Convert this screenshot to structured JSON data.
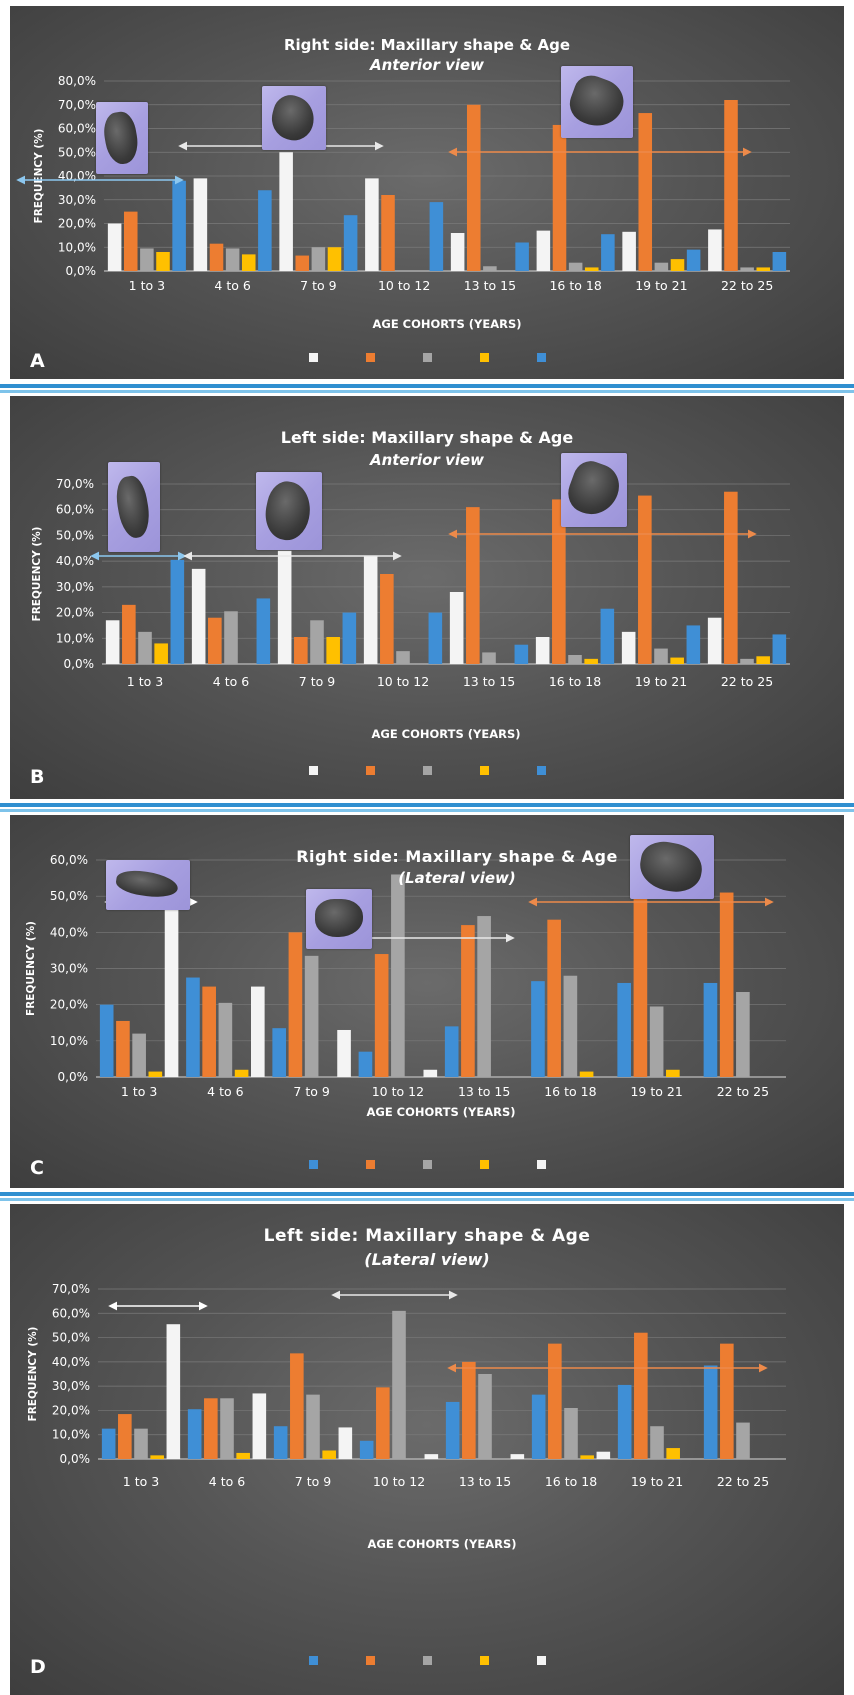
{
  "series_colors": {
    "white": "#f4f4f4",
    "orange": "#ed7d31",
    "gray": "#a5a5a5",
    "yellow": "#ffc000",
    "blue": "#3f8fd6"
  },
  "chart_data": [
    {
      "panel": "A",
      "type": "bar",
      "title": "Right side: Maxillary shape & Age",
      "subtitle": "Anterior view",
      "xlabel": "AGE COHORTS (YEARS)",
      "ylabel": "FREQUENCY (%)",
      "ylim": [
        0,
        80
      ],
      "yticks": [
        "0,0%",
        "10,0%",
        "20,0%",
        "30,0%",
        "40,0%",
        "50,0%",
        "60,0%",
        "70,0%",
        "80,0%"
      ],
      "categories": [
        "1 to 3",
        "4 to 6",
        "7 to 9",
        "10 to 12",
        "13 to 15",
        "16 to 18",
        "19 to 21",
        "22 to 25"
      ],
      "series": [
        {
          "color": "#f4f4f4",
          "values": [
            20,
            39,
            50,
            39,
            16,
            17,
            16.5,
            17.5
          ]
        },
        {
          "color": "#ed7d31",
          "values": [
            25,
            11.5,
            6.5,
            32,
            70,
            61.5,
            66.5,
            72
          ]
        },
        {
          "color": "#a5a5a5",
          "values": [
            9.5,
            9.5,
            10,
            0,
            2,
            3.5,
            3.5,
            1.5
          ]
        },
        {
          "color": "#ffc000",
          "values": [
            8,
            7,
            10,
            0,
            0,
            1.5,
            5,
            1.5
          ]
        },
        {
          "color": "#3f8fd6",
          "values": [
            38,
            34,
            23.5,
            29,
            12,
            15.5,
            9,
            8
          ]
        }
      ],
      "legend_position": "bottom",
      "grid": true
    },
    {
      "panel": "B",
      "type": "bar",
      "title": "Left side: Maxillary shape & Age",
      "subtitle": "Anterior view",
      "xlabel": "AGE COHORTS (YEARS)",
      "ylabel": "FREQUENCY (%)",
      "ylim": [
        0,
        70
      ],
      "yticks": [
        "0,0%",
        "10,0%",
        "20,0%",
        "30,0%",
        "40,0%",
        "50,0%",
        "60,0%",
        "70,0%"
      ],
      "categories": [
        "1 to 3",
        "4 to 6",
        "7 to 9",
        "10 to 12",
        "13 to 15",
        "16 to 18",
        "19 to 21",
        "22 to 25"
      ],
      "series": [
        {
          "color": "#f4f4f4",
          "values": [
            17,
            37,
            44,
            42,
            28,
            10.5,
            12.5,
            18
          ]
        },
        {
          "color": "#ed7d31",
          "values": [
            23,
            18,
            10.5,
            35,
            61,
            64,
            65.5,
            67
          ]
        },
        {
          "color": "#a5a5a5",
          "values": [
            12.5,
            20.5,
            17,
            5,
            4.5,
            3.5,
            6,
            2
          ]
        },
        {
          "color": "#ffc000",
          "values": [
            8,
            0,
            10.5,
            0,
            0,
            2,
            2.5,
            3
          ]
        },
        {
          "color": "#3f8fd6",
          "values": [
            40.5,
            25.5,
            20,
            20,
            7.5,
            21.5,
            15,
            11.5
          ]
        }
      ],
      "legend_position": "bottom",
      "grid": true
    },
    {
      "panel": "C",
      "type": "bar",
      "title": "Right side: Maxillary shape & Age",
      "subtitle": "(Lateral view)",
      "xlabel": "AGE COHORTS (YEARS)",
      "ylabel": "FREQUENCY (%)",
      "ylim": [
        0,
        60
      ],
      "yticks": [
        "0,0%",
        "10,0%",
        "20,0%",
        "30,0%",
        "40,0%",
        "50,0%",
        "60,0%"
      ],
      "categories": [
        "1 to 3",
        "4 to 6",
        "7 to 9",
        "10 to 12",
        "13 to 15",
        "16 to 18",
        "19 to 21",
        "22 to 25"
      ],
      "series": [
        {
          "color": "#3f8fd6",
          "values": [
            20,
            27.5,
            13.5,
            7,
            14,
            26.5,
            26,
            26
          ]
        },
        {
          "color": "#ed7d31",
          "values": [
            15.5,
            25,
            40,
            34,
            42,
            43.5,
            53,
            51
          ]
        },
        {
          "color": "#a5a5a5",
          "values": [
            12,
            20.5,
            33.5,
            56,
            44.5,
            28,
            19.5,
            23.5
          ]
        },
        {
          "color": "#ffc000",
          "values": [
            1.5,
            2,
            0,
            0,
            0,
            1.5,
            2,
            0
          ]
        },
        {
          "color": "#f4f4f4",
          "values": [
            51,
            25,
            13,
            2,
            0,
            0,
            0,
            0
          ]
        }
      ],
      "legend_position": "bottom",
      "grid": true
    },
    {
      "panel": "D",
      "type": "bar",
      "title": "Left side: Maxillary shape & Age",
      "subtitle": "(Lateral view)",
      "xlabel": "AGE COHORTS (YEARS)",
      "ylabel": "FREQUENCY (%)",
      "ylim": [
        0,
        70
      ],
      "yticks": [
        "0,0%",
        "10,0%",
        "20,0%",
        "30,0%",
        "40,0%",
        "50,0%",
        "60,0%",
        "70,0%"
      ],
      "categories": [
        "1 to 3",
        "4 to 6",
        "7 to 9",
        "10 to 12",
        "13 to 15",
        "16 to 18",
        "19 to 21",
        "22 to 25"
      ],
      "series": [
        {
          "color": "#3f8fd6",
          "values": [
            12.5,
            20.5,
            13.5,
            7.5,
            23.5,
            26.5,
            30.5,
            38.5
          ]
        },
        {
          "color": "#ed7d31",
          "values": [
            18.5,
            25,
            43.5,
            29.5,
            40,
            47.5,
            52,
            47.5
          ]
        },
        {
          "color": "#a5a5a5",
          "values": [
            12.5,
            25,
            26.5,
            61,
            35,
            21,
            13.5,
            15
          ]
        },
        {
          "color": "#ffc000",
          "values": [
            1.5,
            2.5,
            3.5,
            0,
            0,
            1.5,
            4.5,
            0
          ]
        },
        {
          "color": "#f4f4f4",
          "values": [
            55.5,
            27,
            13,
            2,
            2,
            3,
            0,
            0
          ]
        }
      ],
      "legend_position": "bottom",
      "grid": true
    }
  ]
}
